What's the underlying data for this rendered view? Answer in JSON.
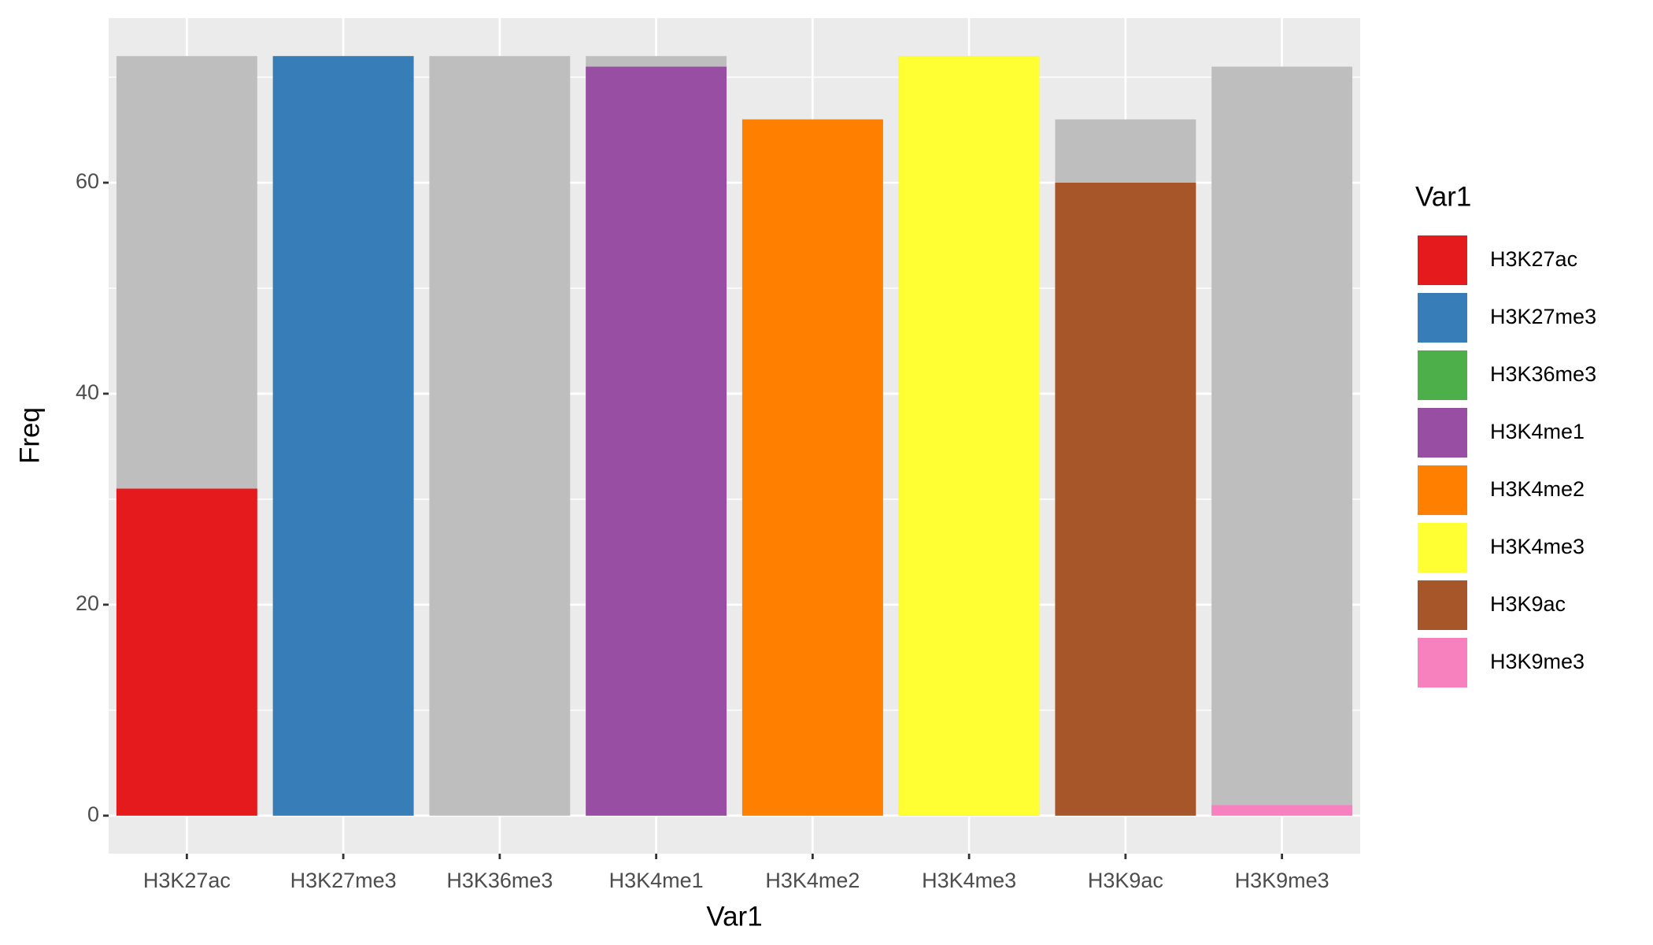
{
  "chart_data": {
    "type": "bar",
    "position": "identity",
    "x_label": "Var1",
    "y_label": "Freq",
    "legend_title": "Var1",
    "categories": [
      "H3K27ac",
      "H3K27me3",
      "H3K36me3",
      "H3K4me1",
      "H3K4me2",
      "H3K4me3",
      "H3K9ac",
      "H3K9me3"
    ],
    "series": [
      {
        "color": "#bebebe",
        "values": [
          72,
          72,
          72,
          72,
          66,
          72,
          66,
          71
        ]
      },
      {
        "colors": [
          "#e41a1c",
          "#377eb8",
          "#4daf4a",
          "#984ea3",
          "#ff7f00",
          "#ffff33",
          "#a65628",
          "#f781bf"
        ],
        "values": [
          31,
          72,
          0,
          71,
          66,
          72,
          60,
          1
        ]
      }
    ],
    "ylim": [
      -3.6,
      75.6
    ],
    "yticks": [
      0,
      20,
      40,
      60
    ],
    "grid": true
  }
}
